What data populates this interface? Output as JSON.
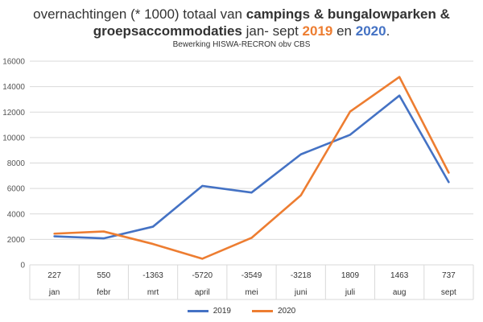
{
  "title": {
    "part1": "overnachtingen (* 1000) totaal van ",
    "part2": "campings & bungalowparken &",
    "part3": "groepsaccommodaties",
    "part4": " jan- sept ",
    "year_a": "2019",
    "part5": " en ",
    "year_b": "2020",
    "part6": "."
  },
  "subtitle": "Bewerking HISWA-RECRON obv CBS",
  "colors": {
    "s2019": "#4472c4",
    "s2020": "#ed7d31",
    "grid": "#d9d9d9"
  },
  "chart_data": {
    "type": "line",
    "categories": [
      "jan",
      "febr",
      "mrt",
      "april",
      "mei",
      "juni",
      "juli",
      "aug",
      "sept"
    ],
    "table_row": [
      "227",
      "550",
      "-1363",
      "-5720",
      "-3549",
      "-3218",
      "1809",
      "1463",
      "737"
    ],
    "series": [
      {
        "name": "2019",
        "color": "#4472c4",
        "values": [
          2240,
          2080,
          3000,
          6200,
          5680,
          8680,
          10220,
          13300,
          6500
        ]
      },
      {
        "name": "2020",
        "color": "#ed7d31",
        "values": [
          2450,
          2620,
          1640,
          480,
          2120,
          5460,
          12040,
          14760,
          7240
        ]
      }
    ],
    "ylim": [
      0,
      16000
    ],
    "yticks": [
      0,
      2000,
      4000,
      6000,
      8000,
      10000,
      12000,
      14000,
      16000
    ],
    "grid": true,
    "legend_position": "bottom"
  }
}
